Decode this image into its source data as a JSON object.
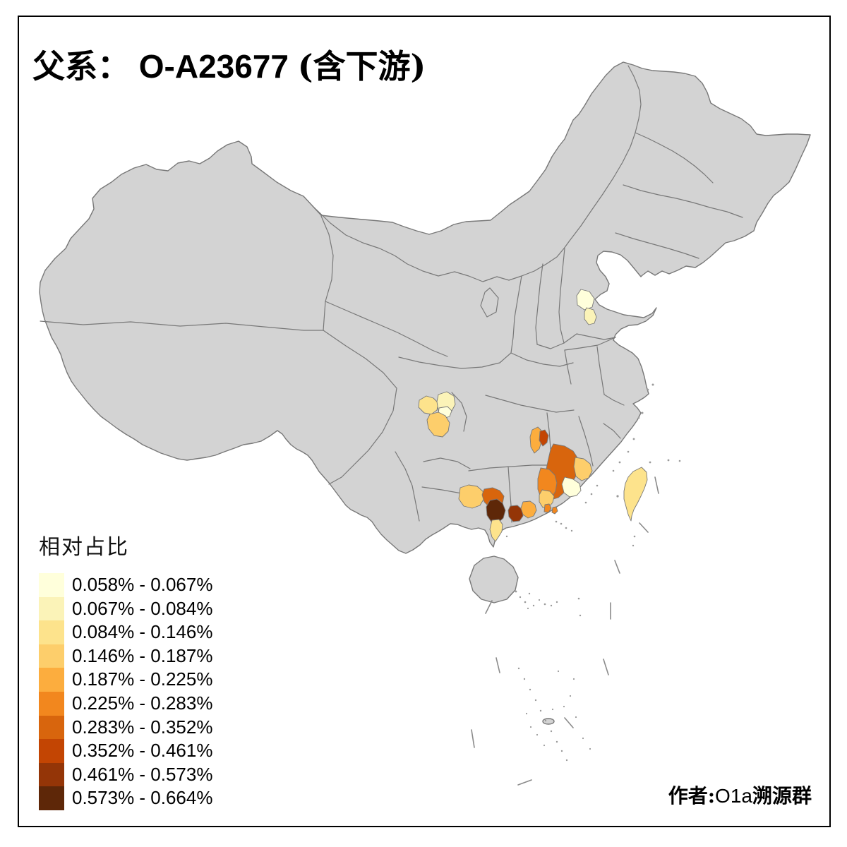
{
  "title": {
    "p1": "父系：",
    "p2": " O-A23677 ",
    "p3": "(含下游)"
  },
  "legend": {
    "title": "相对占比",
    "classes": [
      {
        "label": "0.058% - 0.067%",
        "color": "#FFFFDB"
      },
      {
        "label": "0.067% - 0.084%",
        "color": "#FBF3B8"
      },
      {
        "label": "0.084% - 0.146%",
        "color": "#FDE38C"
      },
      {
        "label": "0.146% - 0.187%",
        "color": "#FDCE6B"
      },
      {
        "label": "0.187% - 0.225%",
        "color": "#FCAD3E"
      },
      {
        "label": "0.225% - 0.283%",
        "color": "#F2871E"
      },
      {
        "label": "0.283% - 0.352%",
        "color": "#D8650D"
      },
      {
        "label": "0.352% - 0.461%",
        "color": "#C34503"
      },
      {
        "label": "0.461% - 0.573%",
        "color": "#943507"
      },
      {
        "label": "0.573% - 0.664%",
        "color": "#5E2708"
      }
    ]
  },
  "credit": {
    "p1": "作者:",
    "p2": "O1a",
    "p3": "溯源群"
  },
  "map": {
    "land_color": "#D3D3D3",
    "border_color": "#787878",
    "background": "#FFFFFF",
    "regions": {
      "beijing": 0,
      "tianjin": 1,
      "sichuan-east": 2,
      "chongqing-north": 1,
      "chongqing-central": 0,
      "chongqing-south": 3,
      "hunan-north": 4,
      "hunan-north-spot": 7,
      "jiangxi-south": 6,
      "fujian-west": 3,
      "guangdong-meizhou": 0,
      "guangdong-north": 5,
      "guangdong-central": 3,
      "pearl-delta": 5,
      "guangxi-west": 3,
      "guangxi-south": 6,
      "guangxi-qinzhou": 9,
      "zhanjiang": 2,
      "maoming": 8,
      "yangjiang": 4,
      "taiwan": 2
    }
  }
}
